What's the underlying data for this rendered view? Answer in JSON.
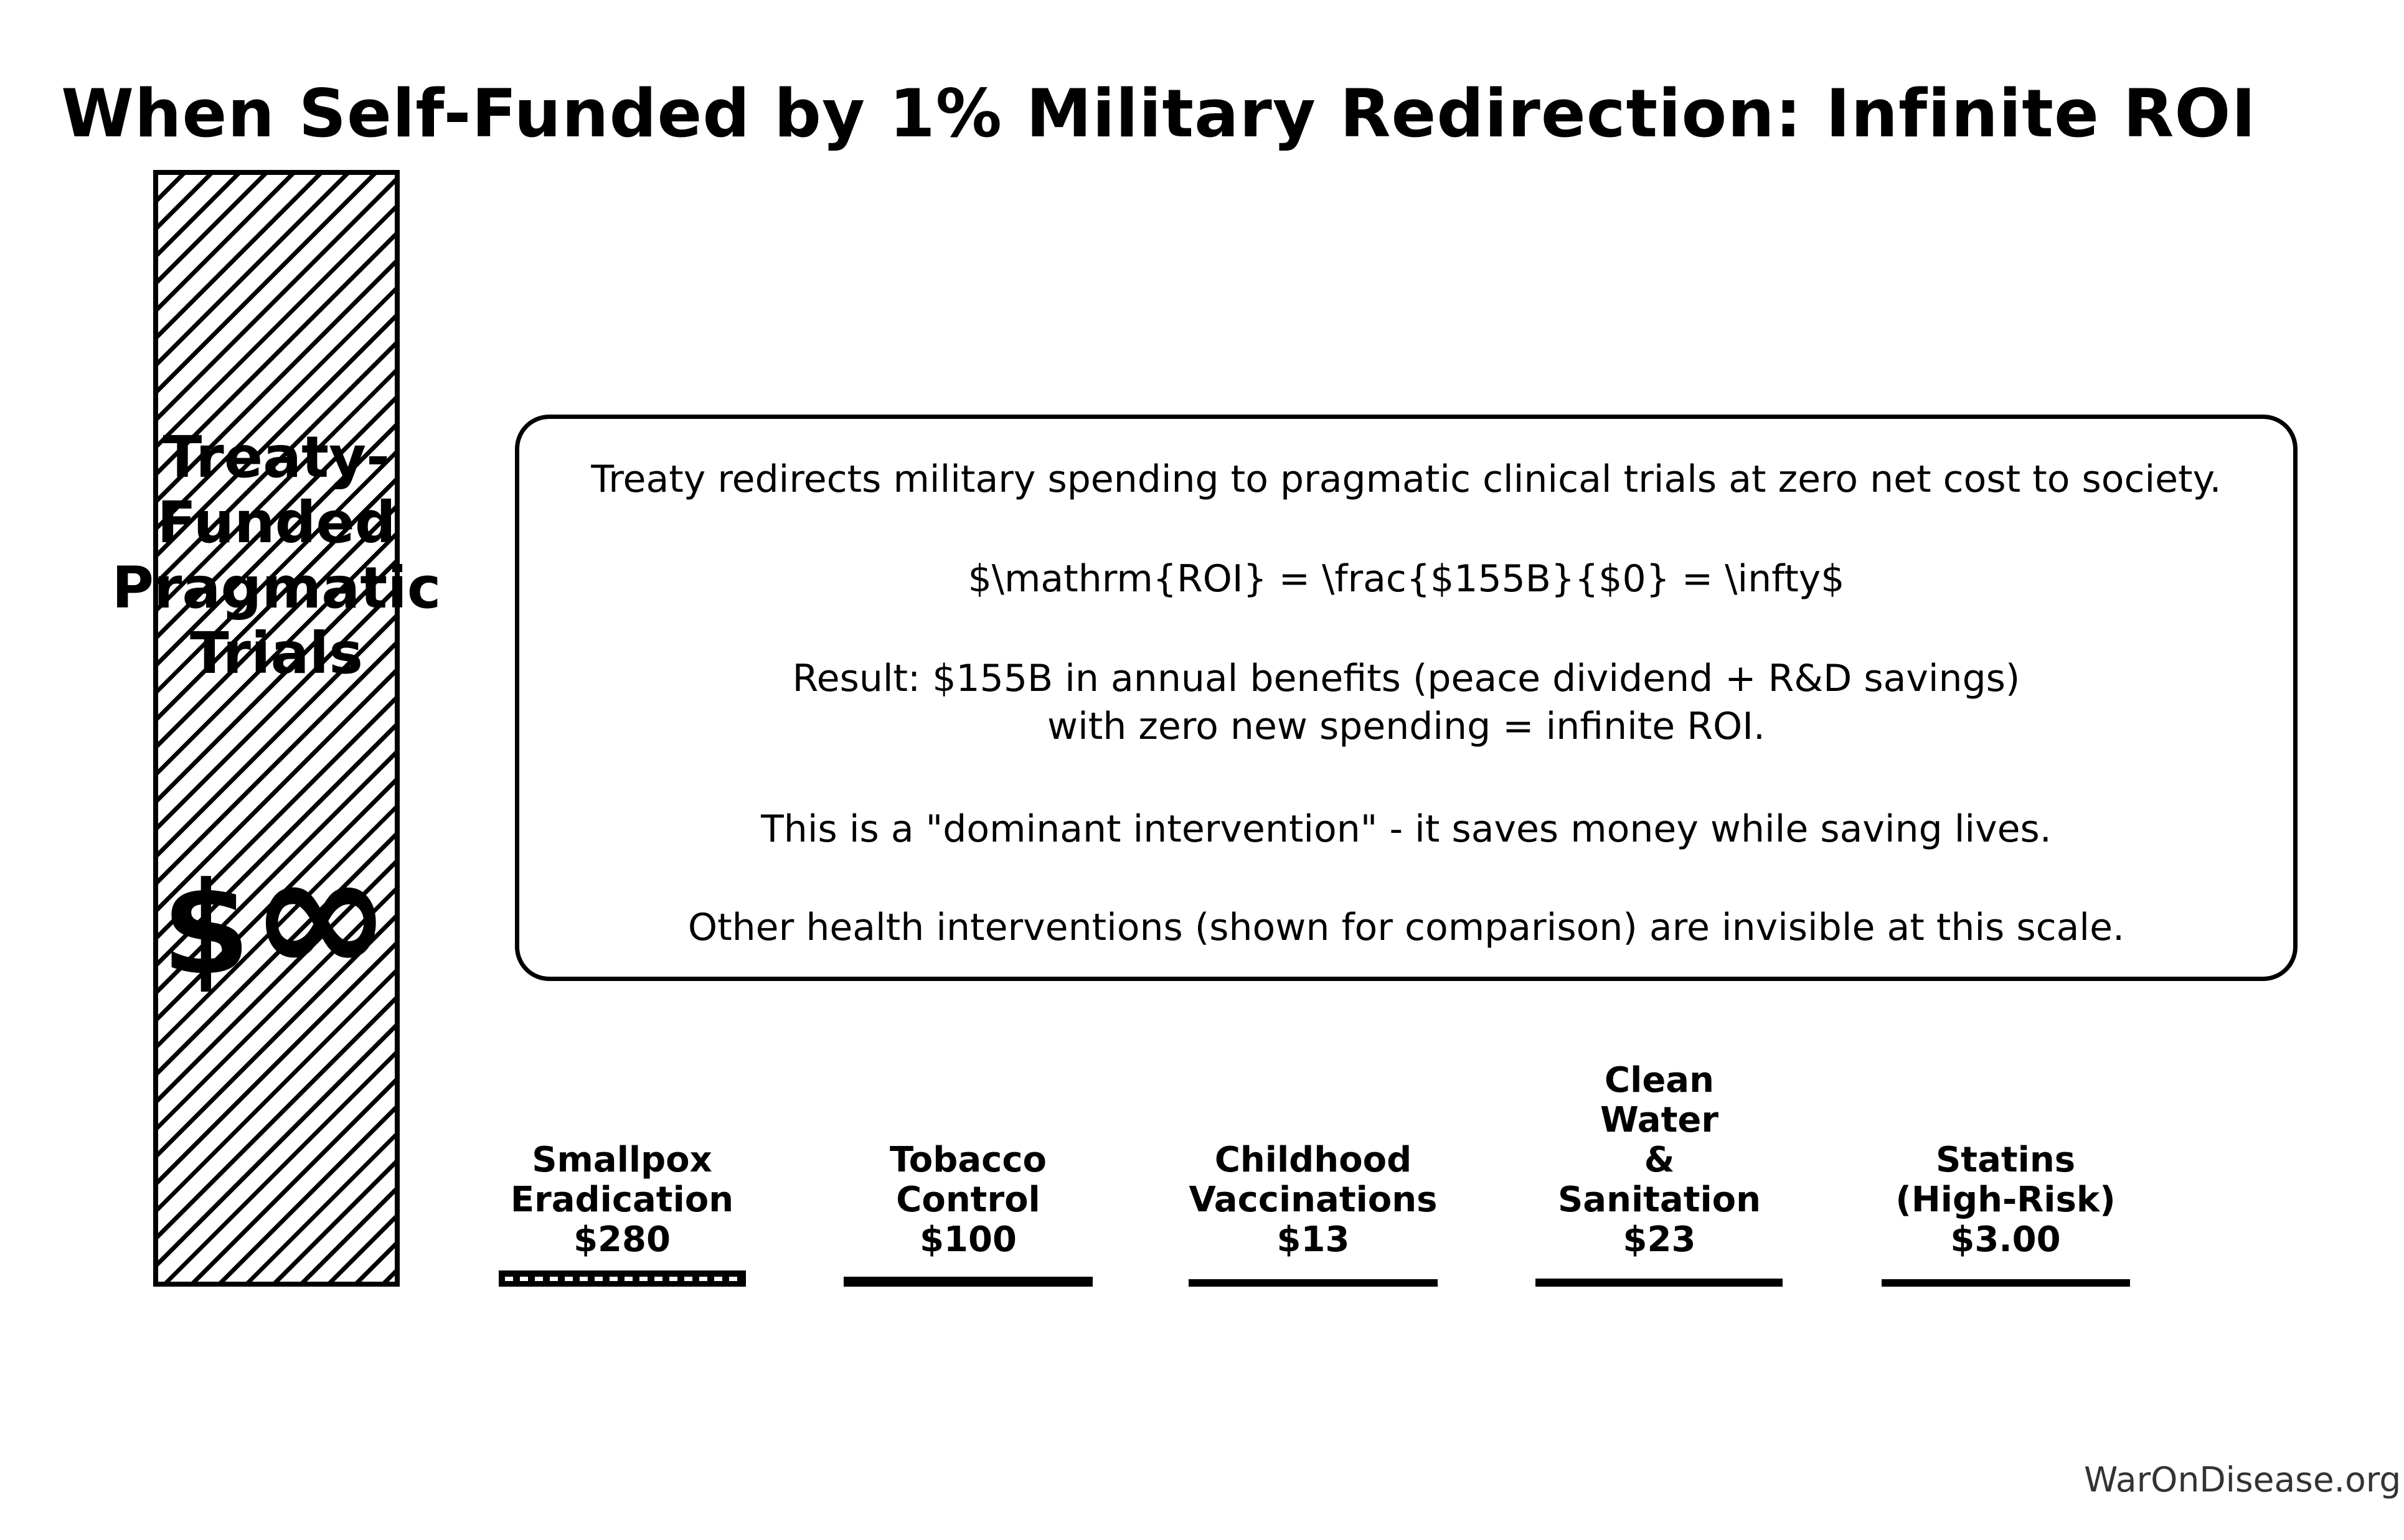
{
  "title": "When Self-Funded by 1% Military Redirection: Infinite ROI",
  "watermark": "WarOnDisease.org",
  "infobox": {
    "line1": "Treaty redirects military spending to pragmatic clinical trials at zero net cost to society.",
    "line2": "$\\mathrm{ROI} = \\frac{$155B}{$0} = \\infty$",
    "line3": "Result: $155B in annual benefits (peace dividend + R&D savings)",
    "line4": "with zero new spending = infinite ROI.",
    "line5": "This is a \"dominant intervention\" - it saves money while saving lives.",
    "line6": "Other health interventions (shown for comparison) are invisible at this scale."
  },
  "bars": [
    {
      "name": "treaty-funded-pragmatic-trials",
      "label_lines": [
        "Treaty-",
        "Funded",
        "Pragmatic",
        "Trials"
      ],
      "value_prefix": "$",
      "value_symbol": "∞",
      "value_label": "$∞"
    },
    {
      "name": "smallpox-eradication",
      "label_lines": [
        "Smallpox",
        "Eradication",
        "$280"
      ]
    },
    {
      "name": "tobacco-control",
      "label_lines": [
        "Tobacco",
        "Control",
        "$100"
      ]
    },
    {
      "name": "childhood-vaccinations",
      "label_lines": [
        "Childhood",
        "Vaccinations",
        "$13"
      ]
    },
    {
      "name": "clean-water-sanitation",
      "label_lines": [
        "Clean",
        "Water",
        "&",
        "Sanitation",
        "$23"
      ]
    },
    {
      "name": "statins-high-risk",
      "label_lines": [
        "Statins",
        "(High-Risk)",
        "$3.00"
      ]
    }
  ],
  "chart_data": {
    "type": "bar",
    "title": "When Self-Funded by 1% Military Redirection: Infinite ROI",
    "categories": [
      "Treaty-Funded Pragmatic Trials",
      "Smallpox Eradication",
      "Tobacco Control",
      "Childhood Vaccinations",
      "Clean Water & Sanitation",
      "Statins (High-Risk)"
    ],
    "values": [
      null,
      280,
      100,
      13,
      23,
      3
    ],
    "value_labels": [
      "$∞",
      "$280",
      "$100",
      "$13",
      "$23",
      "$3.00"
    ],
    "xlabel": "",
    "ylabel": "",
    "grid": false,
    "legend": "none",
    "bar_styles": [
      "white-with-black-diagonal-hatch-and-black-border",
      "black-with-white-dashed-centerline",
      "solid-black",
      "solid-black",
      "solid-black",
      "solid-black"
    ],
    "annotation_text": [
      "Treaty redirects military spending to pragmatic clinical trials at zero net cost to society.",
      "$\\mathrm{ROI} = \\frac{$155B}{$0} = \\infty$",
      "Result: $155B in annual benefits (peace dividend + R&D savings)",
      "with zero new spending = infinite ROI.",
      "This is a \"dominant intervention\" - it saves money while saving lives.",
      "Other health interventions (shown for comparison) are invisible at this scale."
    ],
    "colors": {
      "bar_fill": "#000000",
      "background": "#ffffff",
      "watermark_text": "#333333"
    }
  }
}
